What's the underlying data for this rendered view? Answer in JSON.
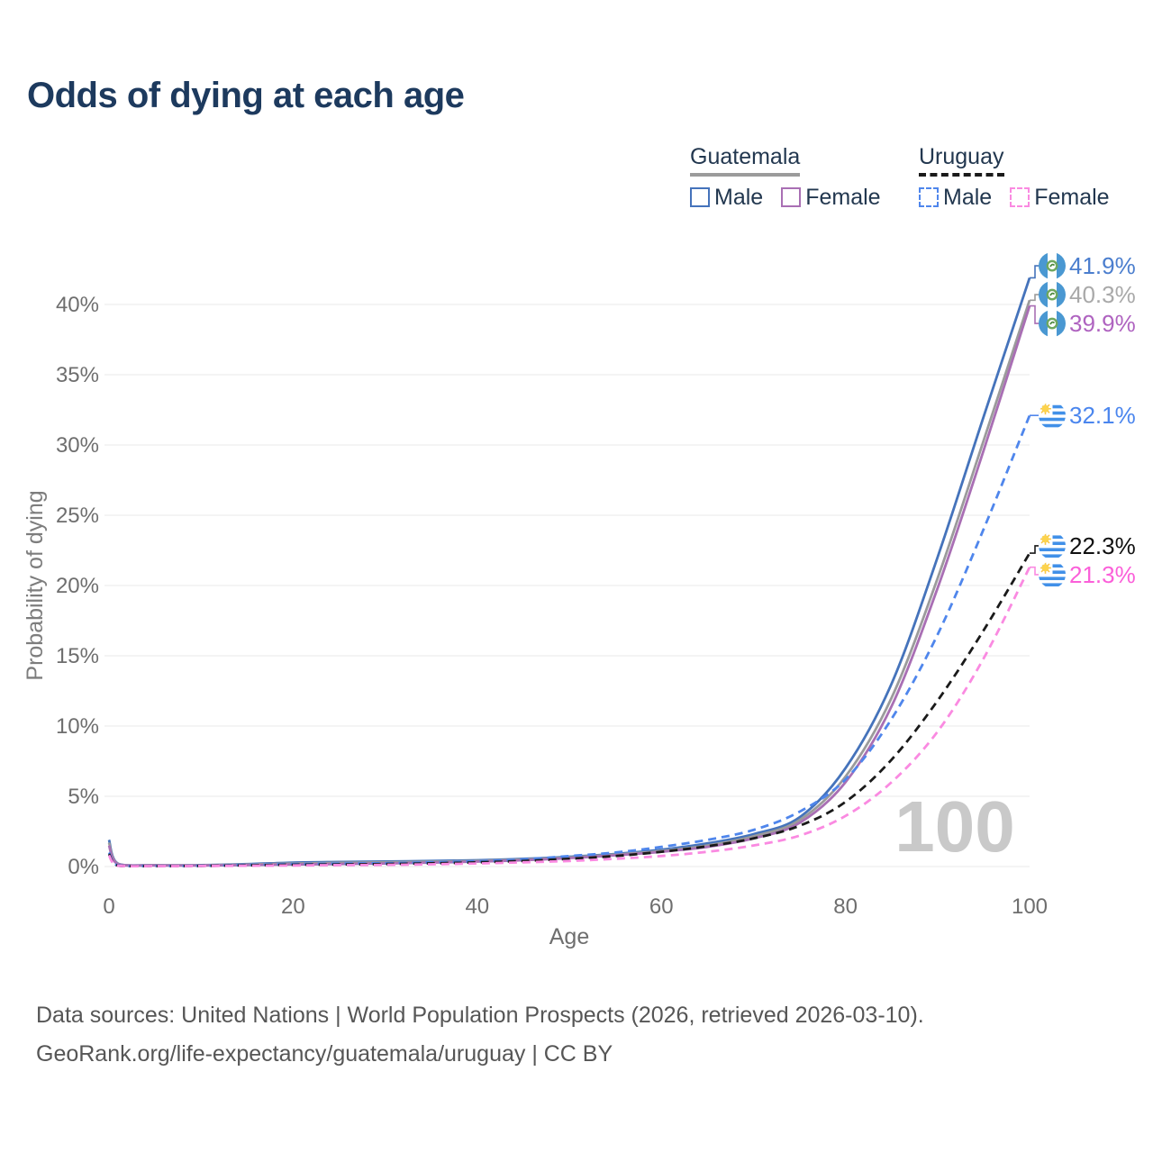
{
  "title": "Odds of dying at each age",
  "legend": {
    "groups": [
      {
        "country": "Guatemala",
        "items": [
          {
            "label": "Male",
            "series": "guatemala-male"
          },
          {
            "label": "Female",
            "series": "guatemala-female"
          }
        ]
      },
      {
        "country": "Uruguay",
        "items": [
          {
            "label": "Male",
            "series": "uruguay-male"
          },
          {
            "label": "Female",
            "series": "uruguay-female"
          }
        ]
      }
    ]
  },
  "footer": {
    "line1": "Data sources: United Nations | World Population Prospects (2026, retrieved 2026-03-10).",
    "line2": "GeoRank.org/life-expectancy/guatemala/uruguay | CC BY"
  },
  "chart_data": {
    "type": "line",
    "title": "Odds of dying at each age",
    "xlabel": "Age",
    "ylabel": "Probability of dying",
    "xlim": [
      0,
      100
    ],
    "ylim": [
      0,
      45
    ],
    "xticks": [
      0,
      20,
      40,
      60,
      80,
      100
    ],
    "yticks": [
      0,
      5,
      10,
      15,
      20,
      25,
      30,
      35,
      40
    ],
    "ytick_suffix": "%",
    "grid": "horizontal",
    "legend_position": "top-right",
    "watermark": "100",
    "x": [
      0,
      1,
      5,
      10,
      15,
      20,
      25,
      30,
      35,
      40,
      45,
      50,
      55,
      60,
      65,
      70,
      75,
      80,
      85,
      90,
      95,
      100
    ],
    "series": [
      {
        "id": "guatemala-male",
        "name": "Guatemala Male",
        "country": "Guatemala",
        "sex": "Male",
        "color": "#4573bb",
        "label_color": "#4b7ece",
        "dashed": false,
        "flag": "guatemala",
        "end_label": "41.9%",
        "values": [
          1.9,
          0.2,
          0.1,
          0.1,
          0.17,
          0.28,
          0.33,
          0.36,
          0.4,
          0.45,
          0.55,
          0.7,
          0.9,
          1.2,
          1.65,
          2.3,
          3.5,
          7.0,
          13.0,
          22.0,
          32.0,
          41.9
        ]
      },
      {
        "id": "guatemala-both",
        "name": "Guatemala Both Sexes",
        "country": "Guatemala",
        "sex": "Both",
        "color": "#9b9b9b",
        "label_color": "#a9a9a9",
        "dashed": false,
        "flag": "guatemala",
        "end_label": "40.3%",
        "values": [
          1.7,
          0.18,
          0.09,
          0.09,
          0.14,
          0.22,
          0.26,
          0.3,
          0.34,
          0.4,
          0.5,
          0.65,
          0.85,
          1.1,
          1.5,
          2.15,
          3.3,
          6.4,
          12.0,
          20.5,
          30.3,
          40.3
        ]
      },
      {
        "id": "guatemala-female",
        "name": "Guatemala Female",
        "country": "Guatemala",
        "sex": "Female",
        "color": "#a96fb4",
        "label_color": "#af63c0",
        "dashed": false,
        "flag": "guatemala",
        "end_label": "39.9%",
        "values": [
          1.5,
          0.16,
          0.08,
          0.08,
          0.11,
          0.15,
          0.18,
          0.22,
          0.28,
          0.35,
          0.45,
          0.6,
          0.8,
          1.05,
          1.4,
          2.0,
          3.1,
          6.0,
          11.4,
          19.8,
          29.6,
          39.9
        ]
      },
      {
        "id": "uruguay-male",
        "name": "Uruguay Male",
        "country": "Uruguay",
        "sex": "Male",
        "color": "#4f86ec",
        "label_color": "#4b86ee",
        "dashed": true,
        "flag": "uruguay",
        "end_label": "32.1%",
        "values": [
          1.0,
          0.07,
          0.04,
          0.05,
          0.12,
          0.18,
          0.21,
          0.24,
          0.3,
          0.38,
          0.5,
          0.75,
          1.0,
          1.4,
          1.9,
          2.6,
          3.9,
          6.2,
          10.5,
          16.5,
          24.0,
          32.1
        ]
      },
      {
        "id": "uruguay-both",
        "name": "Uruguay Both Sexes",
        "country": "Uruguay",
        "sex": "Both",
        "color": "#1a1a1a",
        "label_color": "#101010",
        "dashed": true,
        "flag": "uruguay",
        "end_label": "22.3%",
        "values": [
          0.9,
          0.06,
          0.035,
          0.045,
          0.09,
          0.13,
          0.15,
          0.18,
          0.23,
          0.3,
          0.4,
          0.55,
          0.75,
          1.05,
          1.45,
          2.0,
          2.9,
          4.6,
          7.6,
          11.8,
          16.8,
          22.3
        ]
      },
      {
        "id": "uruguay-female",
        "name": "Uruguay Female",
        "country": "Uruguay",
        "sex": "Female",
        "color": "#fa8ae1",
        "label_color": "#fb5fd9",
        "dashed": true,
        "flag": "uruguay",
        "end_label": "21.3%",
        "values": [
          0.8,
          0.055,
          0.03,
          0.04,
          0.06,
          0.08,
          0.1,
          0.12,
          0.16,
          0.22,
          0.3,
          0.4,
          0.55,
          0.75,
          1.05,
          1.5,
          2.2,
          3.6,
          6.0,
          9.6,
          14.8,
          21.3
        ]
      }
    ]
  }
}
